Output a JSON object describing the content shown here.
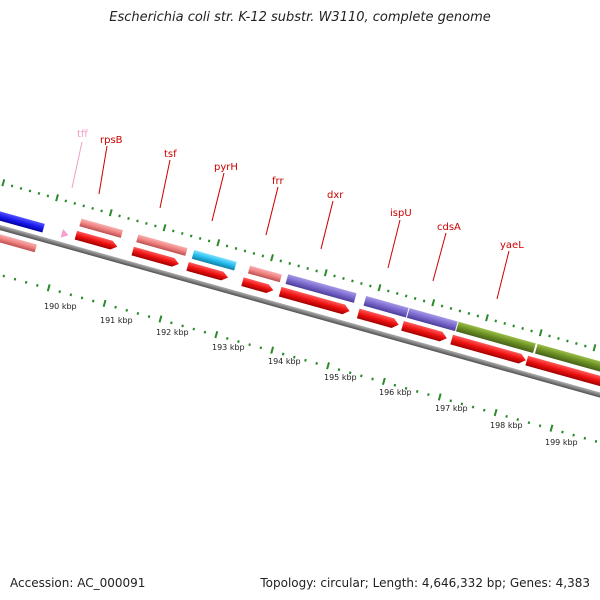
{
  "title": "Escherichia coli str. K-12 substr. W3110, complete genome",
  "footer": {
    "accession": "Accession: AC_000091",
    "summary": "Topology: circular; Length: 4,646,332 bp; Genes: 4,383"
  },
  "ruler": {
    "labels": [
      "190 kbp",
      "191 kbp",
      "192 kbp",
      "193 kbp",
      "194 kbp",
      "195 kbp",
      "196 kbp",
      "197 kbp",
      "198 kbp",
      "199 kbp"
    ]
  },
  "gene_labels": [
    {
      "name": "tff",
      "color": "#f0a0c8"
    },
    {
      "name": "rpsB",
      "color": "#cc0000"
    },
    {
      "name": "tsf",
      "color": "#cc0000"
    },
    {
      "name": "pyrH",
      "color": "#cc0000"
    },
    {
      "name": "frr",
      "color": "#cc0000"
    },
    {
      "name": "dxr",
      "color": "#cc0000"
    },
    {
      "name": "ispU",
      "color": "#cc0000"
    },
    {
      "name": "cdsA",
      "color": "#cc0000"
    },
    {
      "name": "yaeL",
      "color": "#cc0000"
    }
  ],
  "colors": {
    "backbone": "#808080",
    "ticks": "#2a8a2a",
    "cds": "#ee1111",
    "rna": "#f08080",
    "feature_cyan": "#22bbee",
    "feature_purple": "#7b68cc",
    "feature_olive": "#6b8e23",
    "feature_blue": "#1a1aee",
    "feature_pink": "#f4a0d0"
  }
}
